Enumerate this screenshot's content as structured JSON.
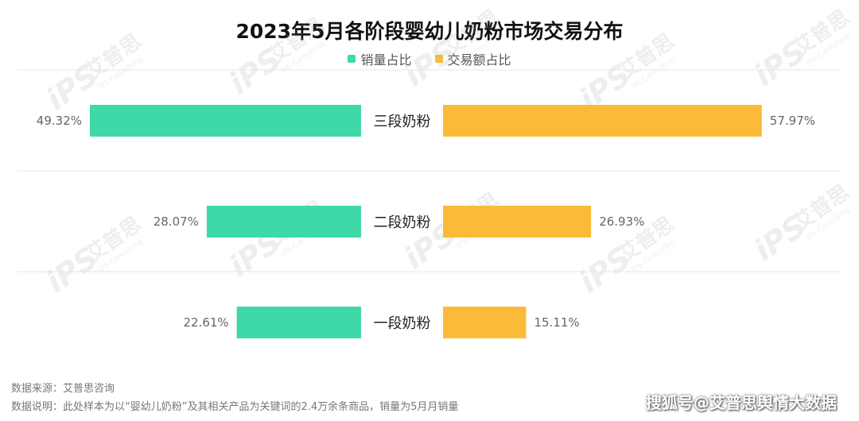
{
  "title": "2023年5月各阶段婴幼儿奶粉市场交易分布",
  "legend": {
    "series_1": "销量占比",
    "series_2": "交易额占比",
    "color_1": "#3fd8a8",
    "color_2": "#fbbb38"
  },
  "chart_data": {
    "type": "bar",
    "orientation": "horizontal-butterfly",
    "categories": [
      "三段奶粉",
      "二段奶粉",
      "一段奶粉"
    ],
    "series": [
      {
        "name": "销量占比",
        "values": [
          49.32,
          28.07,
          22.61
        ],
        "labels": [
          "49.32%",
          "28.07%",
          "22.61%"
        ],
        "color": "#3fd8a8"
      },
      {
        "name": "交易额占比",
        "values": [
          57.97,
          26.93,
          15.11
        ],
        "labels": [
          "57.97%",
          "26.93%",
          "15.11%"
        ],
        "color": "#fbbb38"
      }
    ],
    "unit": "%"
  },
  "footer": {
    "source": "数据来源：艾普思咨询",
    "note": "数据说明：此处样本为以“婴幼儿奶粉”及其相关产品为关键词的2.4万余条商品，销量为5月月销量"
  },
  "watermark": {
    "brand": "艾普思",
    "brand_sub": "IPS Consulting",
    "source_mark": "搜狐号@艾普思舆情大数据"
  }
}
